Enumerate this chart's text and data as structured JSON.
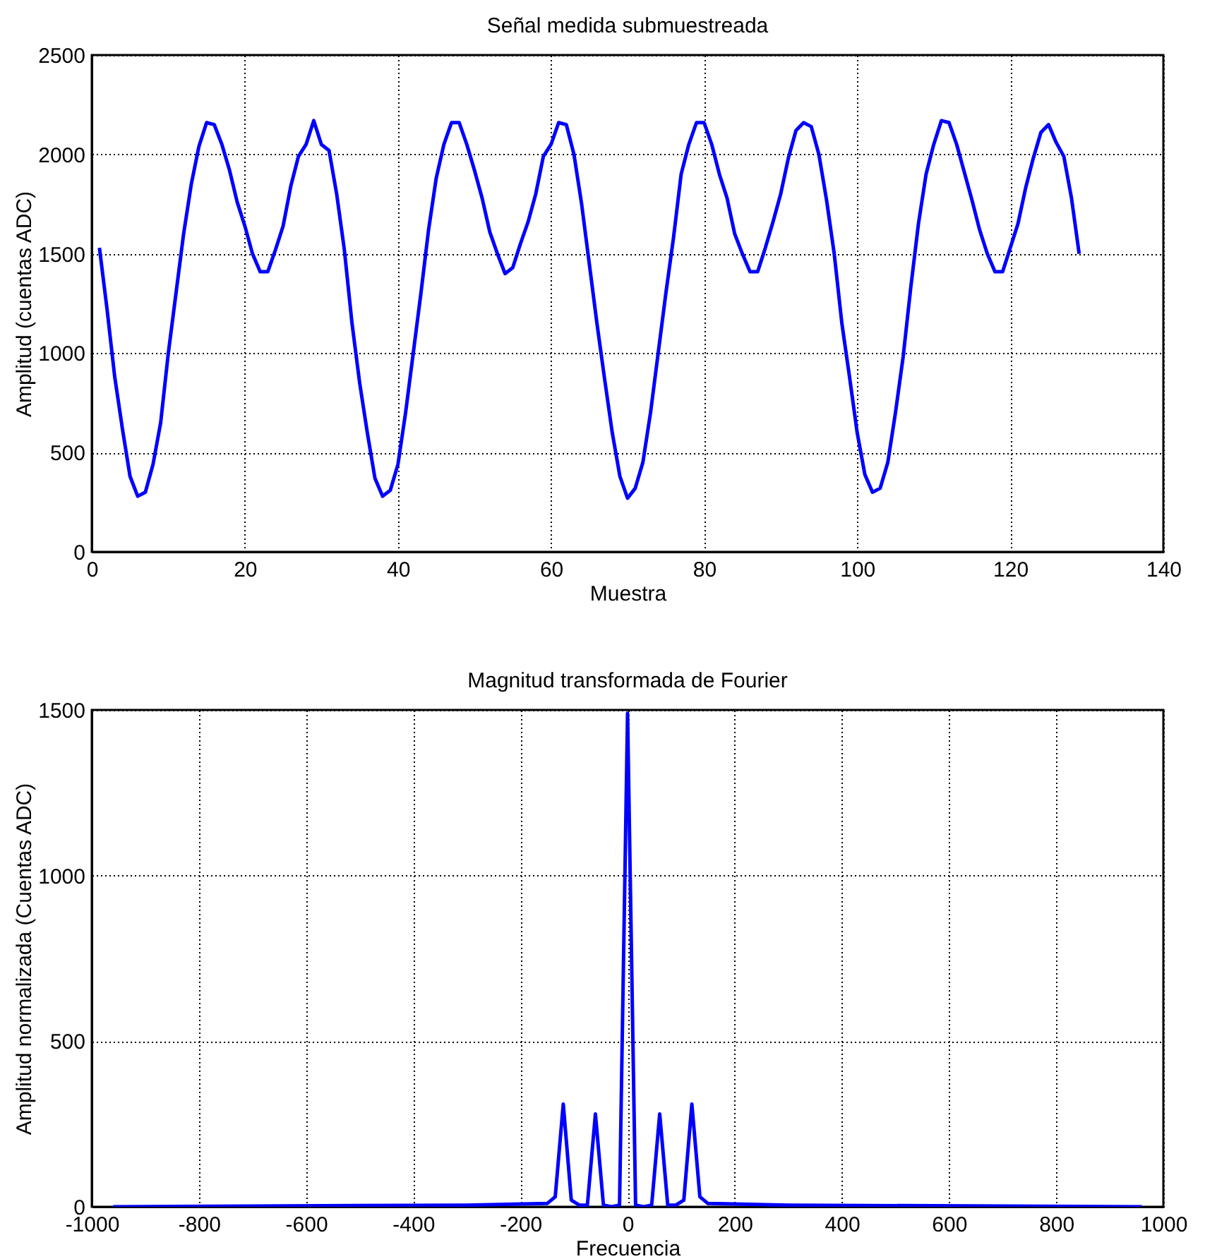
{
  "chart_data": [
    {
      "type": "line",
      "title": "Señal medida submuestreada",
      "xlabel": "Muestra",
      "ylabel": "Amplitud (cuentas ADC)",
      "xlim": [
        0,
        140
      ],
      "xticks": [
        0,
        20,
        40,
        60,
        80,
        100,
        120,
        140
      ],
      "ylim": [
        0,
        2500
      ],
      "yticks": [
        0,
        500,
        1000,
        1500,
        2000,
        2500
      ],
      "grid": true,
      "line_style": "solid",
      "x": [
        1,
        2,
        3,
        4,
        5,
        6,
        7,
        8,
        9,
        10,
        11,
        12,
        13,
        14,
        15,
        16,
        17,
        18,
        19,
        20,
        21,
        22,
        23,
        24,
        25,
        26,
        27,
        28,
        29,
        30,
        31,
        32,
        33,
        34,
        35,
        36,
        37,
        38,
        39,
        40,
        41,
        42,
        43,
        44,
        45,
        46,
        47,
        48,
        49,
        50,
        51,
        52,
        53,
        54,
        55,
        56,
        57,
        58,
        59,
        60,
        61,
        62,
        63,
        64,
        65,
        66,
        67,
        68,
        69,
        70,
        71,
        72,
        73,
        74,
        75,
        76,
        77,
        78,
        79,
        80,
        81,
        82,
        83,
        84,
        85,
        86,
        87,
        88,
        89,
        90,
        91,
        92,
        93,
        94,
        95,
        96,
        97,
        98,
        99,
        100,
        101,
        102,
        103,
        104,
        105,
        106,
        107,
        108,
        109,
        110,
        111,
        112,
        113,
        114,
        115,
        116,
        117,
        118,
        119,
        120,
        121,
        122,
        123,
        124,
        125,
        126,
        127,
        128,
        129
      ],
      "series": [
        {
          "color": "#0000ff",
          "values": [
            1530,
            1220,
            880,
            620,
            380,
            280,
            300,
            440,
            650,
            1000,
            1300,
            1600,
            1850,
            2040,
            2160,
            2150,
            2050,
            1920,
            1760,
            1640,
            1500,
            1410,
            1410,
            1520,
            1640,
            1840,
            1990,
            2050,
            2170,
            2050,
            2020,
            1800,
            1520,
            1150,
            850,
            600,
            370,
            280,
            310,
            440,
            700,
            1000,
            1300,
            1620,
            1880,
            2050,
            2160,
            2160,
            2050,
            1920,
            1780,
            1610,
            1500,
            1400,
            1430,
            1550,
            1660,
            1800,
            1990,
            2050,
            2160,
            2150,
            2000,
            1750,
            1450,
            1150,
            870,
            600,
            380,
            270,
            320,
            450,
            700,
            1000,
            1300,
            1580,
            1900,
            2050,
            2160,
            2160,
            2050,
            1900,
            1780,
            1600,
            1500,
            1410,
            1410,
            1530,
            1660,
            1800,
            1980,
            2120,
            2160,
            2140,
            2000,
            1770,
            1500,
            1150,
            880,
            600,
            390,
            300,
            320,
            450,
            700,
            980,
            1330,
            1650,
            1900,
            2050,
            2170,
            2160,
            2050,
            1910,
            1770,
            1620,
            1500,
            1410,
            1410,
            1530,
            1650,
            1830,
            1980,
            2110,
            2150,
            2060,
            1990,
            1780,
            1500
          ]
        }
      ]
    },
    {
      "type": "line",
      "title": "Magnitud transformada de Fourier",
      "xlabel": "Frecuencia",
      "ylabel": "Amplitud normalizada (Cuentas ADC)",
      "xlim": [
        -1000,
        1000
      ],
      "xticks": [
        -1000,
        -800,
        -600,
        -400,
        -200,
        0,
        200,
        400,
        600,
        800,
        1000
      ],
      "ylim": [
        0,
        1500
      ],
      "yticks": [
        0,
        500,
        1000,
        1500
      ],
      "grid": true,
      "line_style": "solid",
      "x": [
        -960,
        -300,
        -150,
        -135,
        -120,
        -105,
        -90,
        -75,
        -60,
        -45,
        -30,
        -15,
        0,
        15,
        30,
        45,
        60,
        75,
        90,
        105,
        120,
        135,
        150,
        300,
        960
      ],
      "series": [
        {
          "color": "#0000ff",
          "values": [
            0,
            5,
            10,
            30,
            310,
            20,
            5,
            5,
            280,
            5,
            0,
            5,
            1490,
            5,
            0,
            5,
            280,
            5,
            5,
            20,
            310,
            30,
            10,
            5,
            0
          ]
        }
      ]
    }
  ]
}
